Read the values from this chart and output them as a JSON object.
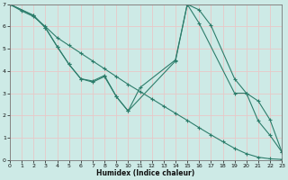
{
  "xlabel": "Humidex (Indice chaleur)",
  "xlim": [
    0,
    23
  ],
  "ylim": [
    0,
    7
  ],
  "xtick_pos": [
    0,
    1,
    2,
    3,
    4,
    5,
    6,
    7,
    8,
    9,
    10,
    11,
    12,
    13,
    14,
    15,
    16,
    17,
    18,
    19,
    20,
    21,
    22,
    23
  ],
  "ytick_pos": [
    0,
    1,
    2,
    3,
    4,
    5,
    6,
    7
  ],
  "line_color": "#2d7d6b",
  "bg_color": "#cdeae6",
  "grid_color": "#bcd8d4",
  "line1_x": [
    0,
    1,
    2,
    3,
    4,
    5,
    6,
    7,
    8,
    9,
    10,
    11,
    12,
    13,
    14,
    15,
    16,
    17,
    18,
    19,
    20,
    21,
    22,
    23
  ],
  "line1_y": [
    7.0,
    6.7,
    6.45,
    6.0,
    5.5,
    5.15,
    4.8,
    4.45,
    4.1,
    3.75,
    3.4,
    3.08,
    2.75,
    2.42,
    2.1,
    1.78,
    1.45,
    1.13,
    0.82,
    0.52,
    0.28,
    0.12,
    0.05,
    0.02
  ],
  "line2_x": [
    0,
    2,
    3,
    4,
    5,
    6,
    7,
    8,
    9,
    10,
    11,
    14,
    15,
    16,
    17,
    19,
    20,
    21,
    22,
    23
  ],
  "line2_y": [
    7.0,
    6.5,
    5.95,
    5.1,
    4.3,
    3.65,
    3.55,
    3.8,
    2.85,
    2.2,
    3.25,
    4.5,
    7.0,
    6.75,
    6.05,
    3.65,
    3.0,
    2.65,
    1.8,
    0.35
  ],
  "line3_x": [
    0,
    2,
    3,
    4,
    5,
    6,
    7,
    8,
    9,
    10,
    14,
    15,
    16,
    19,
    20,
    21,
    22,
    23
  ],
  "line3_y": [
    7.0,
    6.5,
    5.95,
    5.1,
    4.3,
    3.65,
    3.5,
    3.75,
    2.85,
    2.2,
    4.45,
    7.0,
    6.15,
    3.0,
    3.0,
    1.75,
    1.1,
    0.35
  ]
}
